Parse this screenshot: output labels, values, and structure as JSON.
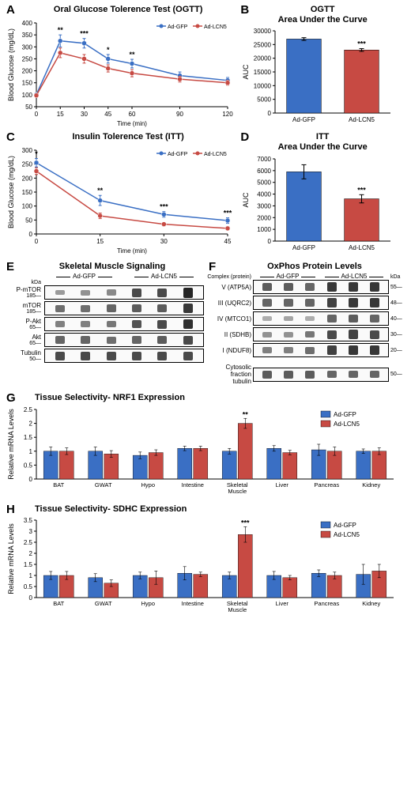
{
  "colors": {
    "gfp": "#3a6fc4",
    "lcn5": "#c74a43",
    "axis": "#000000",
    "grid": "#f0f0f0",
    "bg": "#ffffff"
  },
  "legend": {
    "gfp": "Ad-GFP",
    "lcn5": "Ad-LCN5"
  },
  "panelA": {
    "label": "A",
    "title": "Oral Glucose Tolerence Test (OGTT)",
    "xlabel": "Time (min)",
    "ylabel": "Blood Glucose (mg/dL)",
    "x": [
      0,
      15,
      30,
      45,
      60,
      90,
      120
    ],
    "ylim": [
      50,
      400
    ],
    "ytick_step": 50,
    "gfp": {
      "y": [
        100,
        325,
        315,
        250,
        230,
        180,
        160
      ],
      "err": [
        8,
        25,
        20,
        18,
        18,
        15,
        12
      ]
    },
    "lcn5": {
      "y": [
        97,
        275,
        250,
        210,
        190,
        165,
        150
      ],
      "err": [
        7,
        20,
        18,
        15,
        15,
        12,
        10
      ]
    },
    "sig": [
      "",
      "**",
      "***",
      "*",
      "**",
      "",
      ""
    ]
  },
  "panelB": {
    "label": "B",
    "title_line1": "OGTT",
    "title_line2": "Area Under the Curve",
    "ylabel": "AUC",
    "ylim": [
      0,
      30000
    ],
    "ytick_step": 5000,
    "bars": [
      {
        "label": "Ad-GFP",
        "value": 27000,
        "err": 500,
        "color": "#3a6fc4"
      },
      {
        "label": "Ad-LCN5",
        "value": 23000,
        "err": 500,
        "color": "#c74a43",
        "sig": "***"
      }
    ]
  },
  "panelC": {
    "label": "C",
    "title": "Insulin Tolerence Test (ITT)",
    "xlabel": "Time (min)",
    "ylabel": "Blood Glucose (mg/dL)",
    "x": [
      0,
      15,
      30,
      45
    ],
    "ylim": [
      0,
      300
    ],
    "ytick_step": 50,
    "gfp": {
      "y": [
        255,
        120,
        70,
        48
      ],
      "err": [
        15,
        18,
        10,
        10
      ]
    },
    "lcn5": {
      "y": [
        225,
        65,
        35,
        20
      ],
      "err": [
        12,
        10,
        6,
        5
      ]
    },
    "sig": [
      "*",
      "**",
      "***",
      "***"
    ]
  },
  "panelD": {
    "label": "D",
    "title_line1": "ITT",
    "title_line2": "Area Under the Curve",
    "ylabel": "AUC",
    "ylim": [
      0,
      7000
    ],
    "ytick_step": 1000,
    "bars": [
      {
        "label": "Ad-GFP",
        "value": 5900,
        "err": 600,
        "color": "#3a6fc4"
      },
      {
        "label": "Ad-LCN5",
        "value": 3600,
        "err": 350,
        "color": "#c74a43",
        "sig": "***"
      }
    ]
  },
  "panelE": {
    "label": "E",
    "title": "Skeletal Muscle Signaling",
    "groups": [
      "Ad-GFP",
      "Ad-LCN5"
    ],
    "kDa_label": "kDa",
    "rows": [
      {
        "name": "P-mTOR",
        "kda": "185",
        "intensities": [
          0.25,
          0.3,
          0.35,
          0.7,
          0.7,
          0.9
        ]
      },
      {
        "name": "mTOR",
        "kda": "185",
        "intensities": [
          0.5,
          0.5,
          0.55,
          0.6,
          0.6,
          0.8
        ]
      },
      {
        "name": "P-Akt",
        "kda": "65",
        "intensities": [
          0.4,
          0.4,
          0.45,
          0.65,
          0.7,
          0.85
        ]
      },
      {
        "name": "Akt",
        "kda": "65",
        "intensities": [
          0.55,
          0.55,
          0.5,
          0.55,
          0.6,
          0.7
        ]
      },
      {
        "name": "Tubulin",
        "kda": "50",
        "intensities": [
          0.7,
          0.7,
          0.7,
          0.7,
          0.7,
          0.7
        ]
      }
    ]
  },
  "panelF": {
    "label": "F",
    "title": "OxPhos Protein Levels",
    "groups": [
      "Ad-GFP",
      "Ad-LCN5"
    ],
    "complex_label": "Complex (protein)",
    "kDa_label": "kDa",
    "rows": [
      {
        "name": "V (ATP5A)",
        "kda": "55",
        "intensities": [
          0.6,
          0.6,
          0.55,
          0.8,
          0.8,
          0.8
        ]
      },
      {
        "name": "III (UQRC2)",
        "kda": "48",
        "intensities": [
          0.55,
          0.55,
          0.55,
          0.75,
          0.8,
          0.8
        ]
      },
      {
        "name": "IV (MTCO1)",
        "kda": "40",
        "intensities": [
          0.15,
          0.2,
          0.15,
          0.55,
          0.6,
          0.55
        ]
      },
      {
        "name": "II (SDHB)",
        "kda": "30",
        "intensities": [
          0.3,
          0.3,
          0.45,
          0.7,
          0.75,
          0.7
        ]
      },
      {
        "name": "I (NDUF8)",
        "kda": "20",
        "intensities": [
          0.4,
          0.4,
          0.5,
          0.75,
          0.8,
          0.8
        ]
      }
    ],
    "tubulin": {
      "name": "Cytosolic fraction\ntubulin",
      "kda": "50",
      "intensities": [
        0.6,
        0.6,
        0.6,
        0.55,
        0.55,
        0.55
      ]
    }
  },
  "panelG": {
    "label": "G",
    "title": "Tissue Selectivity- NRF1 Expression",
    "ylabel": "Relative mRNA Levels",
    "ylim": [
      0,
      2.5
    ],
    "ytick_step": 0.5,
    "categories": [
      "BAT",
      "GWAT",
      "Hypo",
      "Intestine",
      "Skeletal\nMuscle",
      "Liver",
      "Pancreas",
      "Kidney"
    ],
    "gfp": {
      "values": [
        1.0,
        1.0,
        0.85,
        1.1,
        1.0,
        1.1,
        1.05,
        1.0
      ],
      "err": [
        0.15,
        0.15,
        0.12,
        0.08,
        0.1,
        0.1,
        0.2,
        0.08
      ]
    },
    "lcn5": {
      "values": [
        1.0,
        0.9,
        0.95,
        1.1,
        2.0,
        0.95,
        1.0,
        1.0
      ],
      "err": [
        0.12,
        0.12,
        0.1,
        0.08,
        0.18,
        0.08,
        0.15,
        0.12
      ],
      "sig": [
        "",
        "",
        "",
        "",
        "**",
        "",
        "",
        ""
      ]
    }
  },
  "panelH": {
    "label": "H",
    "title": "Tissue Selectivity- SDHC Expression",
    "ylabel": "Relative mRNA Levels",
    "ylim": [
      0,
      3.5
    ],
    "ytick_step": 0.5,
    "categories": [
      "BAT",
      "GWAT",
      "Hypo",
      "Intestine",
      "Skeletal\nMuscle",
      "Liver",
      "Pancreas",
      "Kidney"
    ],
    "gfp": {
      "values": [
        1.0,
        0.9,
        1.0,
        1.1,
        1.0,
        1.0,
        1.1,
        1.05
      ],
      "err": [
        0.18,
        0.18,
        0.15,
        0.3,
        0.15,
        0.18,
        0.15,
        0.45
      ]
    },
    "lcn5": {
      "values": [
        1.0,
        0.65,
        0.9,
        1.05,
        2.85,
        0.9,
        1.0,
        1.2
      ],
      "err": [
        0.18,
        0.15,
        0.3,
        0.1,
        0.35,
        0.1,
        0.15,
        0.3
      ],
      "sig": [
        "",
        "",
        "",
        "",
        "***",
        "",
        "",
        ""
      ]
    }
  }
}
